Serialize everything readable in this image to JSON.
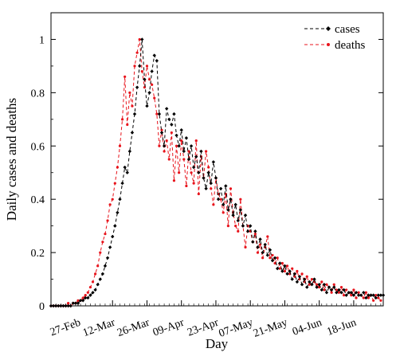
{
  "chart_data": {
    "type": "line",
    "xlabel": "Day",
    "ylabel": "Daily cases and deaths",
    "ylim": [
      0,
      1.1
    ],
    "yticks": [
      0,
      0.2,
      0.4,
      0.6,
      0.8,
      1
    ],
    "ytick_labels": [
      "0",
      "0.2",
      "0.4",
      "0.6",
      "0.8",
      "1"
    ],
    "xlim": [
      "2020-02-16",
      "2020-06-30"
    ],
    "xticks": [
      "2020-02-27",
      "2020-03-12",
      "2020-03-26",
      "2020-04-09",
      "2020-04-23",
      "2020-05-07",
      "2020-05-21",
      "2020-06-04",
      "2020-06-18"
    ],
    "xtick_labels": [
      "27-Feb",
      "12-Mar",
      "26-Mar",
      "09-Apr",
      "23-Apr",
      "07-May",
      "21-May",
      "04-Jun",
      "18-Jun"
    ],
    "grid": false,
    "legend_position": "top-right",
    "series": [
      {
        "name": "cases",
        "color": "#000000",
        "marker": "diamond",
        "x_start": "2020-02-16",
        "step_days": 1,
        "values": [
          0.0,
          0.0,
          0.0,
          0.0,
          0.0,
          0.0,
          0.0,
          0.0,
          0.0,
          0.01,
          0.01,
          0.01,
          0.02,
          0.02,
          0.03,
          0.03,
          0.04,
          0.05,
          0.06,
          0.08,
          0.1,
          0.12,
          0.15,
          0.18,
          0.22,
          0.26,
          0.3,
          0.35,
          0.4,
          0.46,
          0.52,
          0.5,
          0.58,
          0.65,
          0.72,
          0.82,
          0.9,
          1.0,
          0.85,
          0.75,
          0.8,
          0.88,
          0.94,
          0.92,
          0.72,
          0.65,
          0.6,
          0.74,
          0.7,
          0.68,
          0.72,
          0.64,
          0.6,
          0.66,
          0.58,
          0.63,
          0.55,
          0.6,
          0.52,
          0.56,
          0.5,
          0.58,
          0.48,
          0.44,
          0.5,
          0.46,
          0.54,
          0.48,
          0.4,
          0.44,
          0.38,
          0.45,
          0.36,
          0.4,
          0.34,
          0.38,
          0.32,
          0.36,
          0.3,
          0.34,
          0.28,
          0.3,
          0.24,
          0.28,
          0.22,
          0.25,
          0.2,
          0.23,
          0.19,
          0.21,
          0.17,
          0.18,
          0.14,
          0.16,
          0.13,
          0.15,
          0.12,
          0.13,
          0.1,
          0.12,
          0.09,
          0.11,
          0.08,
          0.1,
          0.07,
          0.09,
          0.08,
          0.1,
          0.07,
          0.08,
          0.06,
          0.08,
          0.05,
          0.07,
          0.06,
          0.07,
          0.05,
          0.06,
          0.05,
          0.06,
          0.04,
          0.05,
          0.05,
          0.04,
          0.05,
          0.04,
          0.04,
          0.05,
          0.03,
          0.04,
          0.04,
          0.04,
          0.03,
          0.04,
          0.04,
          0.04
        ]
      },
      {
        "name": "deaths",
        "color": "#e8141c",
        "marker": "dot",
        "x_start": "2020-02-16",
        "step_days": 1,
        "values": [
          0.0,
          0.0,
          0.0,
          0.0,
          0.0,
          0.0,
          0.0,
          0.01,
          0.0,
          0.01,
          0.01,
          0.02,
          0.02,
          0.03,
          0.04,
          0.05,
          0.07,
          0.09,
          0.12,
          0.15,
          0.2,
          0.24,
          0.27,
          0.32,
          0.38,
          0.4,
          0.46,
          0.52,
          0.6,
          0.7,
          0.86,
          0.68,
          0.8,
          0.75,
          0.9,
          0.95,
          1.0,
          0.88,
          0.82,
          0.9,
          0.85,
          0.83,
          0.78,
          0.72,
          0.6,
          0.66,
          0.58,
          0.62,
          0.55,
          0.65,
          0.47,
          0.6,
          0.5,
          0.62,
          0.55,
          0.45,
          0.58,
          0.5,
          0.46,
          0.62,
          0.42,
          0.56,
          0.48,
          0.58,
          0.52,
          0.44,
          0.38,
          0.48,
          0.42,
          0.4,
          0.35,
          0.42,
          0.3,
          0.44,
          0.35,
          0.3,
          0.28,
          0.4,
          0.3,
          0.22,
          0.3,
          0.28,
          0.24,
          0.27,
          0.2,
          0.23,
          0.18,
          0.22,
          0.26,
          0.18,
          0.19,
          0.16,
          0.18,
          0.14,
          0.16,
          0.13,
          0.15,
          0.12,
          0.14,
          0.11,
          0.13,
          0.1,
          0.12,
          0.09,
          0.11,
          0.08,
          0.1,
          0.09,
          0.08,
          0.07,
          0.09,
          0.06,
          0.08,
          0.07,
          0.05,
          0.08,
          0.06,
          0.05,
          0.07,
          0.04,
          0.06,
          0.05,
          0.04,
          0.06,
          0.03,
          0.05,
          0.04,
          0.03,
          0.05,
          0.03,
          0.04,
          0.02,
          0.04,
          0.03,
          0.02
        ]
      }
    ]
  }
}
